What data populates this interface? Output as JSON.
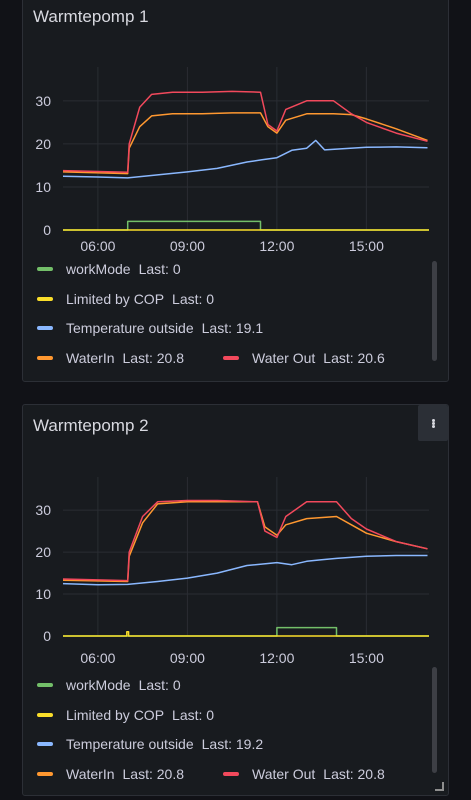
{
  "panels": [
    {
      "title": "Warmtepomp 1",
      "y_ticks": [
        "30",
        "20",
        "10",
        "0"
      ],
      "x_ticks": [
        "06:00",
        "09:00",
        "12:00",
        "15:00"
      ],
      "legend": [
        {
          "name": "workMode",
          "last": "Last: 0",
          "color": "#73bf69"
        },
        {
          "name": "Limited by COP",
          "last": "Last: 0",
          "color": "#fade2a"
        },
        {
          "name": "Temperature outside",
          "last": "Last: 19.1",
          "color": "#8ab8ff"
        },
        {
          "name": "WaterIn",
          "last": "Last: 20.8",
          "color": "#ff9830"
        },
        {
          "name": "Water Out",
          "last": "Last: 20.6",
          "color": "#f2495c"
        }
      ]
    },
    {
      "title": "Warmtepomp 2",
      "y_ticks": [
        "30",
        "20",
        "10",
        "0"
      ],
      "x_ticks": [
        "06:00",
        "09:00",
        "12:00",
        "15:00"
      ],
      "legend": [
        {
          "name": "workMode",
          "last": "Last: 0",
          "color": "#73bf69"
        },
        {
          "name": "Limited by COP",
          "last": "Last: 0",
          "color": "#fade2a"
        },
        {
          "name": "Temperature outside",
          "last": "Last: 19.2",
          "color": "#8ab8ff"
        },
        {
          "name": "WaterIn",
          "last": "Last: 20.8",
          "color": "#ff9830"
        },
        {
          "name": "Water Out",
          "last": "Last: 20.8",
          "color": "#f2495c"
        }
      ]
    }
  ],
  "chart_data": [
    {
      "type": "line",
      "title": "Warmtepomp 1",
      "x_range": [
        "04:50",
        "17:05"
      ],
      "ylim": [
        0,
        36
      ],
      "grid": true,
      "legend_placement": "bottom",
      "series": [
        {
          "name": "workMode",
          "color": "#73bf69",
          "points": [
            [
              4.83,
              0
            ],
            [
              7.0,
              0
            ],
            [
              7.0,
              2
            ],
            [
              11.45,
              2
            ],
            [
              11.45,
              0
            ],
            [
              17.1,
              0
            ]
          ]
        },
        {
          "name": "Limited by COP",
          "color": "#fade2a",
          "points": [
            [
              4.83,
              0
            ],
            [
              17.1,
              0
            ]
          ]
        },
        {
          "name": "Temperature outside",
          "color": "#8ab8ff",
          "points": [
            [
              4.83,
              12.5
            ],
            [
              6.0,
              12.3
            ],
            [
              7.0,
              12.1
            ],
            [
              8.0,
              12.8
            ],
            [
              9.0,
              13.5
            ],
            [
              10.0,
              14.3
            ],
            [
              11.0,
              15.8
            ],
            [
              11.5,
              16.3
            ],
            [
              12.0,
              16.8
            ],
            [
              12.5,
              18.5
            ],
            [
              13.0,
              19.0
            ],
            [
              13.3,
              20.8
            ],
            [
              13.6,
              18.6
            ],
            [
              14.0,
              18.8
            ],
            [
              15.0,
              19.2
            ],
            [
              16.0,
              19.3
            ],
            [
              17.05,
              19.1
            ]
          ]
        },
        {
          "name": "WaterIn",
          "color": "#ff9830",
          "points": [
            [
              4.83,
              13.5
            ],
            [
              7.0,
              13.1
            ],
            [
              7.05,
              19.0
            ],
            [
              7.4,
              24.0
            ],
            [
              7.8,
              26.5
            ],
            [
              8.5,
              27.0
            ],
            [
              9.5,
              27.0
            ],
            [
              10.5,
              27.2
            ],
            [
              11.45,
              27.2
            ],
            [
              11.7,
              24.0
            ],
            [
              12.0,
              22.5
            ],
            [
              12.3,
              25.5
            ],
            [
              13.0,
              27.0
            ],
            [
              13.9,
              27.0
            ],
            [
              14.5,
              26.8
            ],
            [
              15.0,
              25.8
            ],
            [
              16.0,
              23.5
            ],
            [
              17.05,
              20.8
            ]
          ]
        },
        {
          "name": "Water Out",
          "color": "#f2495c",
          "points": [
            [
              4.83,
              13.8
            ],
            [
              7.0,
              13.4
            ],
            [
              7.05,
              20.0
            ],
            [
              7.4,
              28.5
            ],
            [
              7.8,
              31.5
            ],
            [
              8.5,
              32.0
            ],
            [
              9.5,
              32.0
            ],
            [
              10.5,
              32.2
            ],
            [
              11.45,
              32.0
            ],
            [
              11.7,
              24.5
            ],
            [
              12.0,
              23.0
            ],
            [
              12.3,
              28.0
            ],
            [
              13.0,
              30.0
            ],
            [
              13.9,
              30.0
            ],
            [
              14.5,
              27.0
            ],
            [
              15.0,
              25.0
            ],
            [
              16.0,
              22.5
            ],
            [
              17.05,
              20.6
            ]
          ]
        }
      ]
    },
    {
      "type": "line",
      "title": "Warmtepomp 2",
      "x_range": [
        "04:50",
        "17:05"
      ],
      "ylim": [
        0,
        36
      ],
      "grid": true,
      "legend_placement": "bottom",
      "series": [
        {
          "name": "workMode",
          "color": "#73bf69",
          "points": [
            [
              4.83,
              0
            ],
            [
              12.0,
              0
            ],
            [
              12.0,
              2
            ],
            [
              14.0,
              2
            ],
            [
              14.0,
              0
            ],
            [
              17.1,
              0
            ]
          ]
        },
        {
          "name": "Limited by COP",
          "color": "#fade2a",
          "points": [
            [
              4.83,
              0
            ],
            [
              6.97,
              0
            ],
            [
              6.97,
              1
            ],
            [
              7.03,
              1
            ],
            [
              7.03,
              0
            ],
            [
              17.1,
              0
            ]
          ]
        },
        {
          "name": "Temperature outside",
          "color": "#8ab8ff",
          "points": [
            [
              4.83,
              12.5
            ],
            [
              6.0,
              12.2
            ],
            [
              7.0,
              12.3
            ],
            [
              8.0,
              13.0
            ],
            [
              9.0,
              13.8
            ],
            [
              10.0,
              15.0
            ],
            [
              11.0,
              16.8
            ],
            [
              12.0,
              17.5
            ],
            [
              12.5,
              17.0
            ],
            [
              13.0,
              17.8
            ],
            [
              13.5,
              18.2
            ],
            [
              14.0,
              18.5
            ],
            [
              15.0,
              19.0
            ],
            [
              16.0,
              19.2
            ],
            [
              17.05,
              19.2
            ]
          ]
        },
        {
          "name": "WaterIn",
          "color": "#ff9830",
          "points": [
            [
              4.83,
              13.3
            ],
            [
              7.0,
              13.0
            ],
            [
              7.05,
              19.0
            ],
            [
              7.5,
              27.0
            ],
            [
              8.0,
              31.5
            ],
            [
              9.0,
              32.0
            ],
            [
              10.0,
              32.0
            ],
            [
              11.35,
              32.0
            ],
            [
              11.6,
              26.0
            ],
            [
              12.0,
              24.0
            ],
            [
              12.3,
              26.5
            ],
            [
              13.0,
              28.0
            ],
            [
              14.0,
              28.5
            ],
            [
              14.5,
              26.5
            ],
            [
              15.0,
              24.5
            ],
            [
              16.0,
              22.5
            ],
            [
              17.05,
              20.8
            ]
          ]
        },
        {
          "name": "Water Out",
          "color": "#f2495c",
          "points": [
            [
              4.83,
              13.6
            ],
            [
              7.0,
              13.2
            ],
            [
              7.05,
              20.0
            ],
            [
              7.5,
              28.5
            ],
            [
              8.0,
              32.0
            ],
            [
              9.0,
              32.3
            ],
            [
              10.0,
              32.3
            ],
            [
              11.35,
              32.0
            ],
            [
              11.6,
              25.0
            ],
            [
              12.0,
              23.5
            ],
            [
              12.3,
              28.5
            ],
            [
              13.0,
              32.0
            ],
            [
              14.0,
              32.0
            ],
            [
              14.5,
              28.0
            ],
            [
              15.0,
              25.5
            ],
            [
              16.0,
              22.5
            ],
            [
              17.05,
              20.8
            ]
          ]
        }
      ]
    }
  ]
}
